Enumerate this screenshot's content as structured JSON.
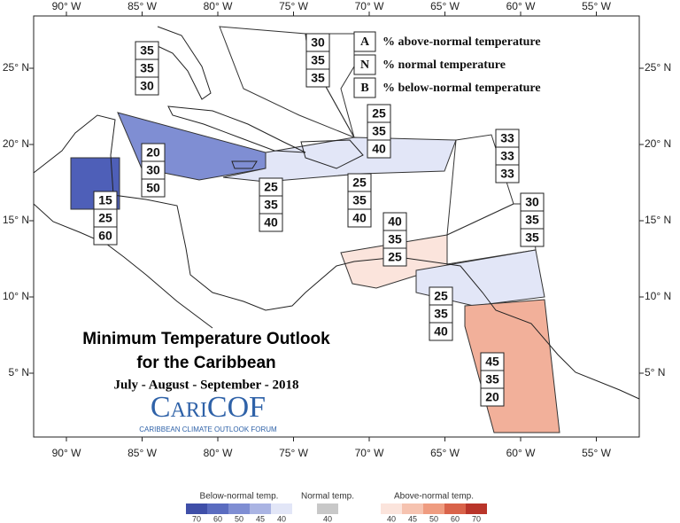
{
  "title": {
    "line1": "Minimum Temperature Outlook",
    "line2": "for the Caribbean"
  },
  "period": "July - August - September - 2018",
  "logo": {
    "name": "CariCOF",
    "tagline": "CARIBBEAN CLIMATE OUTLOOK FORUM"
  },
  "key": [
    {
      "letter": "A",
      "text": "% above-normal temperature"
    },
    {
      "letter": "N",
      "text": "% normal temperature"
    },
    {
      "letter": "B",
      "text": "% below-normal temperature"
    }
  ],
  "lon_labels": [
    "90° W",
    "85° W",
    "80° W",
    "75° W",
    "70° W",
    "65° W",
    "60° W",
    "55° W"
  ],
  "lat_labels": [
    "25° N",
    "20° N",
    "15° N",
    "10° N",
    "5° N"
  ],
  "regions": [
    {
      "probs": [
        35,
        35,
        30
      ]
    },
    {
      "probs": [
        30,
        35,
        35
      ]
    },
    {
      "probs": [
        25,
        35,
        40
      ]
    },
    {
      "probs": [
        33,
        33,
        33
      ]
    },
    {
      "probs": [
        20,
        30,
        50
      ]
    },
    {
      "probs": [
        15,
        25,
        60
      ]
    },
    {
      "probs": [
        25,
        35,
        40
      ]
    },
    {
      "probs": [
        25,
        35,
        40
      ]
    },
    {
      "probs": [
        30,
        35,
        35
      ]
    },
    {
      "probs": [
        40,
        35,
        25
      ]
    },
    {
      "probs": [
        25,
        35,
        40
      ]
    },
    {
      "probs": [
        45,
        35,
        20
      ]
    }
  ],
  "legend": [
    {
      "title": "Below-normal temp.",
      "ticks": [
        70,
        60,
        50,
        45,
        40
      ],
      "colors": [
        "#3f4fa8",
        "#5a6cc0",
        "#7f8ed3",
        "#aab4e3",
        "#e2e6f7"
      ]
    },
    {
      "title": "Normal temp.",
      "ticks": [
        40
      ],
      "colors": [
        "#c8c8c8"
      ]
    },
    {
      "title": "Above-normal temp.",
      "ticks": [
        40,
        45,
        50,
        60,
        70
      ],
      "colors": [
        "#fbe4dc",
        "#f6c3b0",
        "#ef9c80",
        "#d9634a",
        "#b9352a"
      ]
    }
  ]
}
